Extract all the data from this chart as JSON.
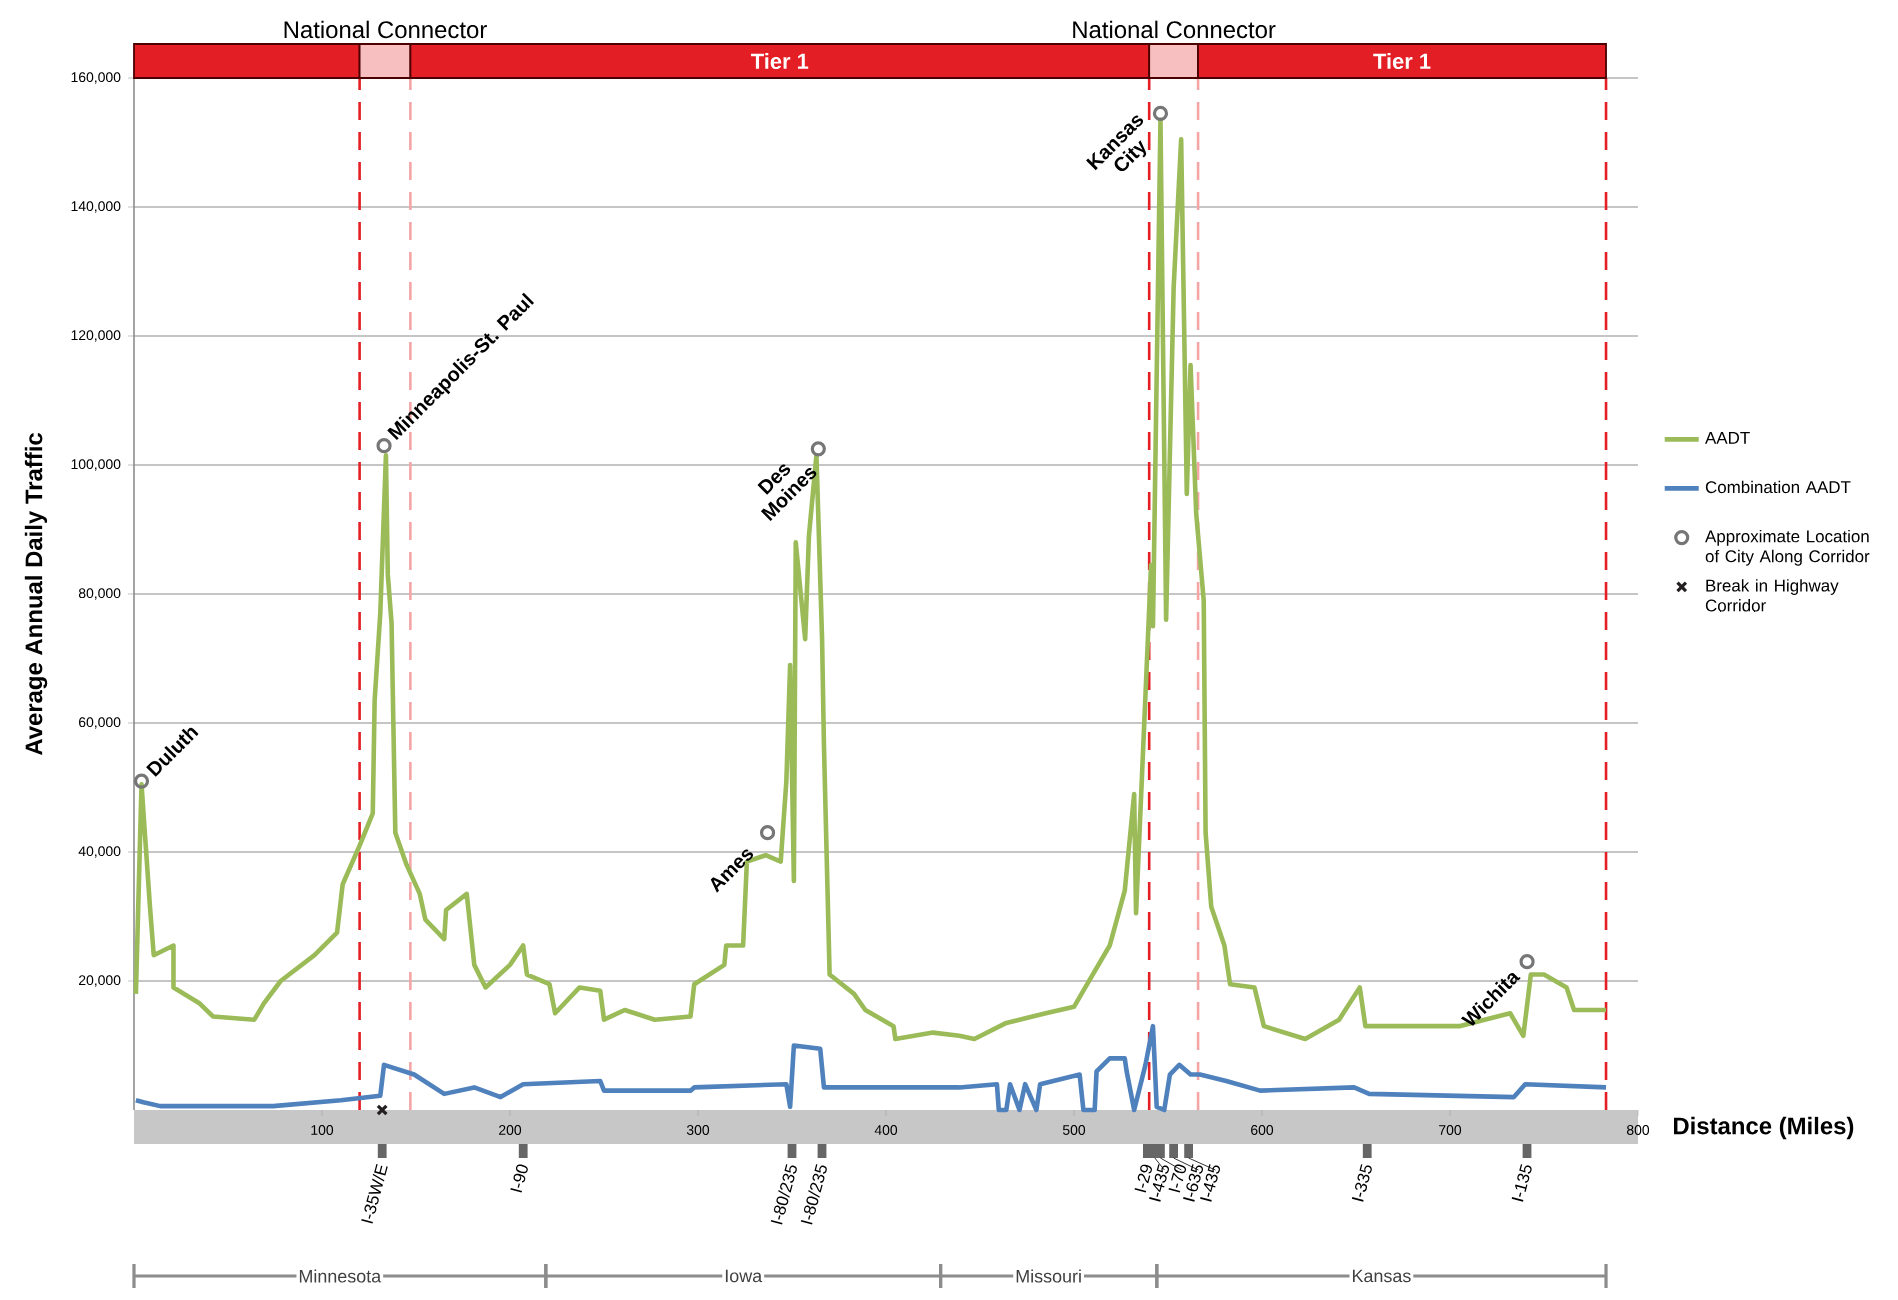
{
  "chart_data": {
    "type": "line",
    "xlabel": "Distance (Miles)",
    "ylabel": "Average Annual Daily Traffic",
    "xlim": [
      0,
      800
    ],
    "ylim": [
      0,
      160000
    ],
    "xticks": [
      100,
      200,
      300,
      400,
      500,
      600,
      700,
      800
    ],
    "yticks": [
      {
        "value": 20000,
        "label": "20,000"
      },
      {
        "value": 40000,
        "label": "40,000"
      },
      {
        "value": 60000,
        "label": "60,000"
      },
      {
        "value": 80000,
        "label": "80,000"
      },
      {
        "value": 100000,
        "label": "100,000"
      },
      {
        "value": 120000,
        "label": "120,000"
      },
      {
        "value": 140000,
        "label": "140,000"
      },
      {
        "value": 160000,
        "label": "160,000"
      }
    ],
    "grid": "y",
    "legend": "right",
    "series": [
      {
        "name": "AADT",
        "color": "#9bbb59",
        "x": [
          1,
          4,
          6,
          8.5,
          10.5,
          21,
          21,
          35,
          42,
          64,
          69,
          78,
          96,
          108,
          111,
          120,
          127,
          128,
          131,
          134,
          135,
          137,
          139,
          145,
          152,
          155,
          165,
          166,
          177,
          181,
          187,
          200,
          207,
          209,
          221,
          224,
          237,
          248,
          250,
          261,
          277,
          296,
          298,
          314,
          315,
          324,
          326,
          336,
          344,
          347,
          349,
          351,
          352,
          357,
          359,
          363,
          366,
          367,
          370,
          383,
          389,
          404,
          405,
          425,
          439,
          447,
          464,
          485,
          500,
          505,
          519,
          527,
          532,
          533,
          537,
          541,
          542,
          546,
          549,
          553,
          557,
          560,
          562,
          565,
          569,
          570,
          573,
          580,
          583,
          596,
          601,
          623,
          641,
          652,
          655,
          705,
          732,
          739,
          743,
          750,
          762,
          766,
          783
        ],
        "values": [
          18000,
          50500,
          42000,
          31500,
          24000,
          25500,
          19000,
          16500,
          14500,
          14000,
          16500,
          20000,
          24000,
          27500,
          35000,
          41000,
          46000,
          63500,
          77000,
          101500,
          83000,
          75500,
          43000,
          38000,
          33500,
          29500,
          26500,
          31000,
          33500,
          22500,
          19000,
          22500,
          25500,
          21000,
          19500,
          15000,
          19000,
          18500,
          14000,
          15500,
          14000,
          14500,
          19500,
          22500,
          25500,
          25500,
          38500,
          39500,
          38500,
          51000,
          69000,
          35500,
          88000,
          73000,
          89000,
          101500,
          73000,
          56500,
          21000,
          18000,
          15500,
          13000,
          11000,
          12000,
          11500,
          11000,
          13500,
          15000,
          16000,
          18500,
          25500,
          34000,
          49000,
          30500,
          57500,
          84500,
          75000,
          153500,
          76000,
          127500,
          150500,
          95500,
          115500,
          92500,
          79000,
          43000,
          31500,
          25500,
          19500,
          19000,
          13000,
          11000,
          14000,
          19000,
          13000,
          13000,
          15000,
          11500,
          21000,
          21000,
          19000,
          15500,
          15500
        ]
      },
      {
        "name": "Combination AADT",
        "color": "#4f81bd",
        "x": [
          1,
          5,
          14,
          74,
          110,
          131,
          133,
          149,
          165,
          181,
          195,
          207,
          248,
          250,
          296,
          298,
          347,
          349,
          351,
          365,
          367,
          439,
          459,
          460,
          464,
          466,
          471,
          474,
          480,
          482,
          503,
          505,
          511,
          512,
          519,
          527,
          528,
          532,
          538,
          542,
          544,
          548,
          551,
          556,
          562,
          567,
          581,
          599,
          649,
          657,
          734,
          740,
          783
        ],
        "values": [
          1500,
          1200,
          600,
          600,
          1500,
          2200,
          7000,
          5500,
          2500,
          3500,
          2000,
          4000,
          4500,
          3000,
          3000,
          3500,
          4000,
          500,
          10000,
          9500,
          3500,
          3500,
          4000,
          0,
          0,
          4000,
          0,
          4000,
          0,
          4000,
          5500,
          0,
          0,
          6000,
          8000,
          8000,
          6000,
          0,
          7000,
          13000,
          500,
          0,
          5500,
          7000,
          5500,
          5500,
          4500,
          3000,
          3500,
          2500,
          2000,
          4000,
          3500
        ]
      },
      {
        "name": "Approximate Location of City Along Corridor",
        "type": "scatter",
        "marker": "circle",
        "color": "#767676",
        "x": [
          4,
          133,
          337,
          364,
          546,
          741
        ],
        "values": [
          51000,
          103000,
          43000,
          102500,
          154500,
          23000
        ]
      },
      {
        "name": "Break in Highway Corridor",
        "type": "scatter",
        "marker": "cross",
        "color": "#231f20",
        "x": [
          132
        ],
        "values": [
          0
        ]
      }
    ],
    "ref_lines": [
      {
        "axis": "x",
        "value": 120,
        "color": "#e31e24",
        "line_style": "dashed"
      },
      {
        "axis": "x",
        "value": 147,
        "color": "#f4a6a6",
        "line_style": "dashed"
      },
      {
        "axis": "x",
        "value": 540,
        "color": "#e31e24",
        "line_style": "dashed"
      },
      {
        "axis": "x",
        "value": 566,
        "color": "#f4a6a6",
        "line_style": "dashed"
      },
      {
        "axis": "x",
        "value": 783,
        "color": "#e31e24",
        "line_style": "dashed"
      }
    ],
    "annotations": [
      {
        "text": "Duluth",
        "x": 4,
        "y": 51000
      },
      {
        "text": "Minneapolis-St. Paul",
        "x": 133,
        "y": 103000
      },
      {
        "text": "Ames",
        "x": 337,
        "y": 43000
      },
      {
        "text": "Des Moines",
        "x": 364,
        "y": 102500
      },
      {
        "text": "Kansas City",
        "x": 546,
        "y": 154500
      },
      {
        "text": "Wichita",
        "x": 741,
        "y": 23000
      },
      "National Connector",
      "Tier 1",
      "National Connector",
      "Tier 1",
      "Minnesota",
      "Iowa",
      "Missouri",
      "Kansas",
      "I-35W/E",
      "I-90",
      "I-80/235",
      "I-80/235",
      "I-29",
      "I-435",
      "I-70",
      "I-635",
      "I-435",
      "I-335",
      "I-135"
    ]
  }
}
